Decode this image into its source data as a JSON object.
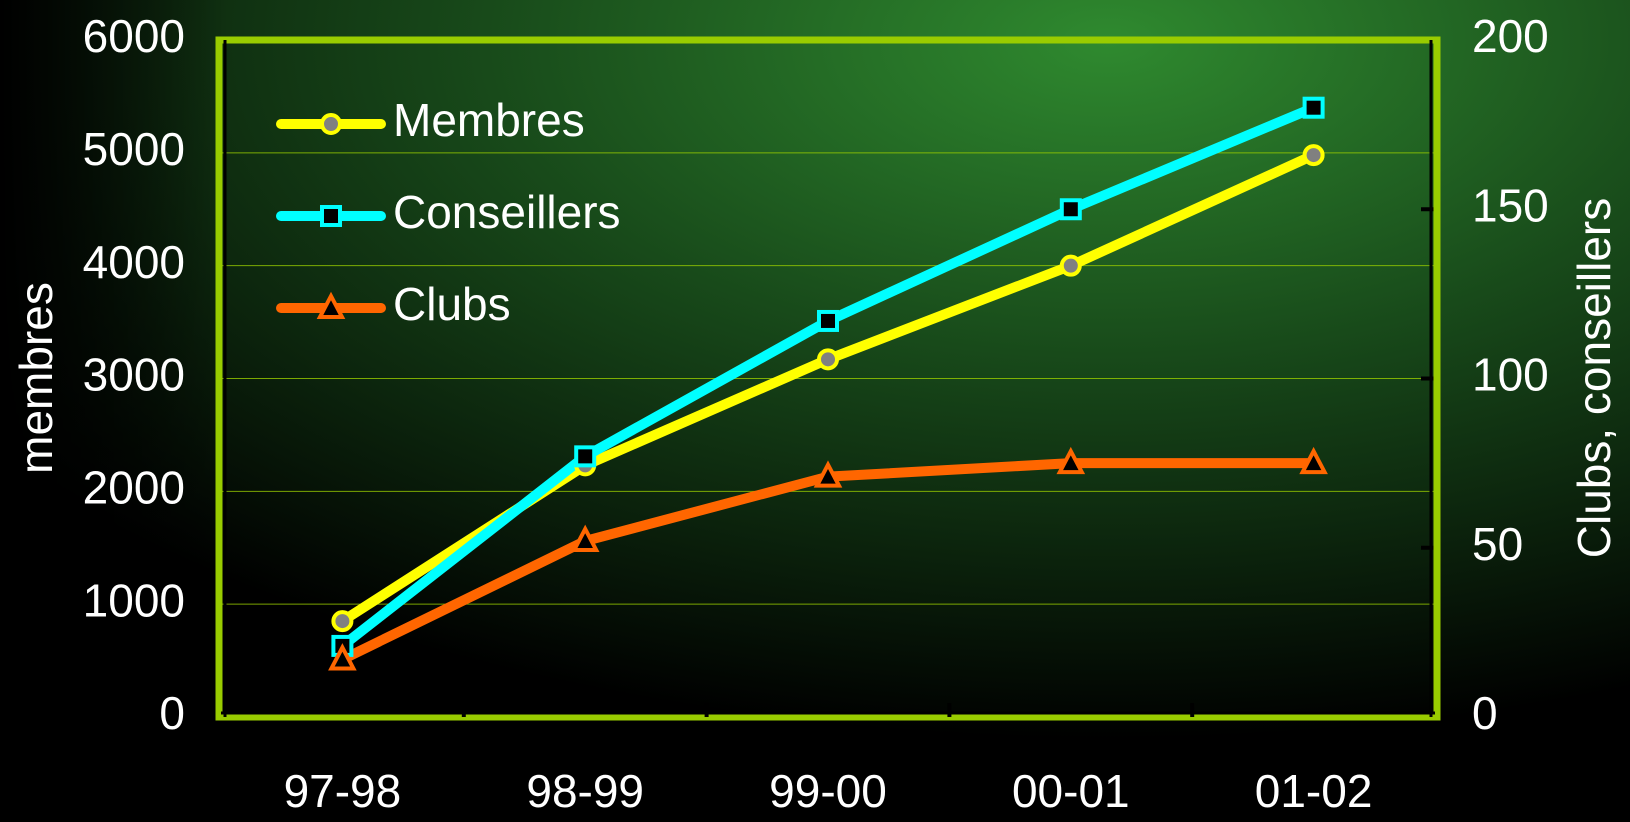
{
  "chart_data": {
    "type": "line",
    "categories": [
      "97-98",
      "98-99",
      "99-00",
      "00-01",
      "01-02"
    ],
    "series": [
      {
        "name": "Membres",
        "color": "#ffff00",
        "marker": "circle",
        "marker_fill": "#808080",
        "values": [
          850,
          2230,
          3170,
          4000,
          4980
        ]
      },
      {
        "name": "Conseillers",
        "color": "#00ffff",
        "marker": "square",
        "marker_fill": "#000000",
        "axis": "y2",
        "values": [
          21,
          77,
          117,
          150,
          180
        ]
      },
      {
        "name": "Clubs",
        "color": "#ff6600",
        "marker": "triangle",
        "marker_fill": "#000000",
        "axis": "y2",
        "values": [
          17,
          52,
          71,
          75,
          75
        ]
      }
    ],
    "ylabel": "membres",
    "y2label": "Clubs, conseillers",
    "ylim": [
      0,
      6000
    ],
    "yticks": [
      0,
      1000,
      2000,
      3000,
      4000,
      5000,
      6000
    ],
    "y2lim": [
      0,
      200
    ],
    "y2ticks": [
      0,
      50,
      100,
      150,
      200
    ],
    "grid": true,
    "legend": "upper left",
    "frame_color": "#99cc00"
  }
}
